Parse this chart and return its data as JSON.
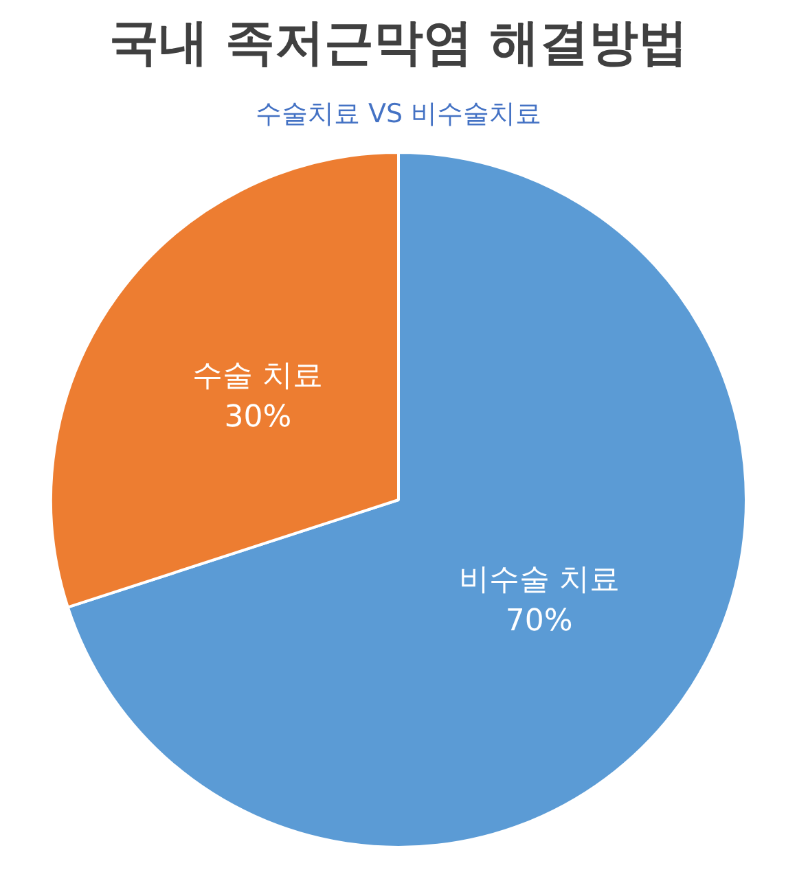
{
  "chart_data": {
    "type": "pie",
    "title": "국내 족저근막염 해결방법",
    "subtitle": "수술치료 VS 비수술치료",
    "categories": [
      "비수술 치료",
      "수술 치료"
    ],
    "values": [
      70,
      30
    ],
    "value_labels": [
      "70%",
      "30%"
    ],
    "colors": [
      "#5b9bd5",
      "#ed7d31"
    ],
    "legend": false
  }
}
